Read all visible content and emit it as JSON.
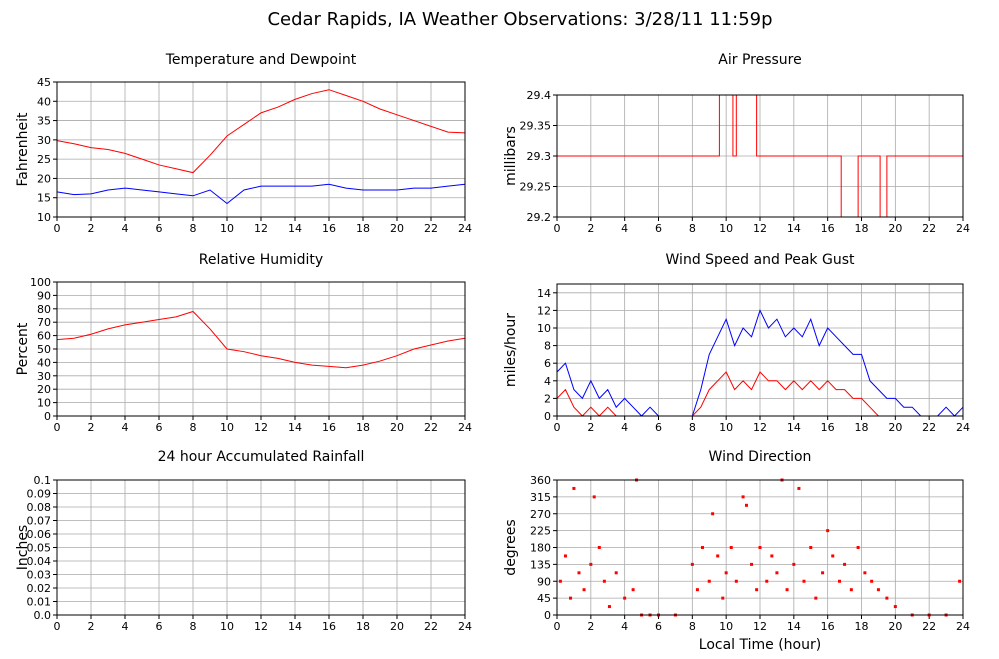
{
  "title": "Cedar Rapids, IA Weather Observations: 3/28/11 11:59p",
  "chart_data": [
    {
      "type": "line",
      "title": "Temperature and Dewpoint",
      "ylabel": "Fahrenheit",
      "x": [
        0,
        1,
        2,
        3,
        4,
        5,
        6,
        7,
        8,
        9,
        10,
        11,
        12,
        13,
        14,
        15,
        16,
        17,
        18,
        19,
        20,
        21,
        22,
        23,
        24
      ],
      "series": [
        {
          "color": "#ff0000",
          "values": [
            29.8,
            29,
            28,
            27.5,
            26.5,
            25,
            23.5,
            22.5,
            21.5,
            26,
            31,
            34,
            37,
            38.5,
            40.5,
            42,
            43,
            41.5,
            40,
            38,
            36.5,
            35,
            33.5,
            32,
            31.8
          ]
        },
        {
          "color": "#0000ff",
          "values": [
            16.5,
            15.8,
            16,
            17,
            17.5,
            17,
            16.5,
            16,
            15.5,
            17,
            13.5,
            17,
            18,
            18,
            18,
            18,
            18.5,
            17.5,
            17,
            17,
            17,
            17.5,
            17.5,
            18,
            18.5
          ]
        }
      ],
      "xlim": [
        0,
        24
      ],
      "xticks": [
        0,
        2,
        4,
        6,
        8,
        10,
        12,
        14,
        16,
        18,
        20,
        22,
        24
      ],
      "ylim": [
        10,
        45
      ],
      "yticks": [
        10,
        15,
        20,
        25,
        30,
        35,
        40,
        45
      ],
      "grid": true
    },
    {
      "type": "line",
      "title": "Air Pressure",
      "ylabel": "millibars",
      "x": [
        0,
        9.6,
        9.6,
        10.4,
        10.4,
        10.6,
        10.6,
        11.8,
        11.8,
        16.8,
        16.8,
        17.8,
        17.8,
        19.1,
        19.1,
        19.5,
        19.5,
        24
      ],
      "series": [
        {
          "color": "#ff0000",
          "values": [
            29.3,
            29.3,
            29.4,
            29.4,
            29.3,
            29.3,
            29.4,
            29.4,
            29.3,
            29.3,
            29.2,
            29.2,
            29.3,
            29.3,
            29.2,
            29.2,
            29.3,
            29.3
          ]
        }
      ],
      "xlim": [
        0,
        24
      ],
      "xticks": [
        0,
        2,
        4,
        6,
        8,
        10,
        12,
        14,
        16,
        18,
        20,
        22,
        24
      ],
      "ylim": [
        29.2,
        29.4
      ],
      "yticks": [
        29.2,
        29.25,
        29.3,
        29.35,
        29.4
      ],
      "grid": true
    },
    {
      "type": "line",
      "title": "Relative Humidity",
      "ylabel": "Percent",
      "x": [
        0,
        1,
        2,
        3,
        4,
        5,
        6,
        7,
        8,
        9,
        10,
        11,
        12,
        13,
        14,
        15,
        16,
        17,
        18,
        19,
        20,
        21,
        22,
        23,
        24
      ],
      "series": [
        {
          "color": "#ff0000",
          "values": [
            57,
            58,
            61,
            65,
            68,
            70,
            72,
            74,
            78,
            65,
            50,
            48,
            45,
            43,
            40,
            38,
            37,
            36,
            38,
            41,
            45,
            50,
            53,
            56,
            58
          ]
        }
      ],
      "xlim": [
        0,
        24
      ],
      "xticks": [
        0,
        2,
        4,
        6,
        8,
        10,
        12,
        14,
        16,
        18,
        20,
        22,
        24
      ],
      "ylim": [
        0,
        100
      ],
      "yticks": [
        0,
        10,
        20,
        30,
        40,
        50,
        60,
        70,
        80,
        90,
        100
      ],
      "grid": true
    },
    {
      "type": "line",
      "title": "Wind Speed and Peak Gust",
      "ylabel": "miles/hour",
      "x": [
        0,
        0.5,
        1,
        1.5,
        2,
        2.5,
        3,
        3.5,
        4,
        4.5,
        5,
        5.5,
        6,
        6.5,
        7,
        7.5,
        8,
        8.5,
        9,
        9.5,
        10,
        10.5,
        11,
        11.5,
        12,
        12.5,
        13,
        13.5,
        14,
        14.5,
        15,
        15.5,
        16,
        16.5,
        17,
        17.5,
        18,
        18.5,
        19,
        19.5,
        20,
        20.5,
        21,
        21.5,
        22,
        22.5,
        23,
        23.5,
        24
      ],
      "series": [
        {
          "color": "#0000ff",
          "values": [
            5,
            6,
            3,
            2,
            4,
            2,
            3,
            1,
            2,
            1,
            0,
            1,
            0,
            0,
            0,
            0,
            0,
            3,
            7,
            9,
            11,
            8,
            10,
            9,
            12,
            10,
            11,
            9,
            10,
            9,
            11,
            8,
            10,
            9,
            8,
            7,
            7,
            4,
            3,
            2,
            2,
            1,
            1,
            0,
            0,
            0,
            1,
            0,
            1
          ]
        },
        {
          "color": "#ff0000",
          "values": [
            2,
            3,
            1,
            0,
            1,
            0,
            1,
            0,
            0,
            0,
            0,
            0,
            0,
            0,
            0,
            0,
            0,
            1,
            3,
            4,
            5,
            3,
            4,
            3,
            5,
            4,
            4,
            3,
            4,
            3,
            4,
            3,
            4,
            3,
            3,
            2,
            2,
            1,
            0,
            0,
            0,
            0,
            0,
            0,
            0,
            0,
            0,
            0,
            0
          ]
        }
      ],
      "xlim": [
        0,
        24
      ],
      "xticks": [
        0,
        2,
        4,
        6,
        8,
        10,
        12,
        14,
        16,
        18,
        20,
        22,
        24
      ],
      "ylim": [
        0,
        15
      ],
      "yticks": [
        0,
        2,
        4,
        6,
        8,
        10,
        12,
        14
      ],
      "grid": true
    },
    {
      "type": "line",
      "title": "24 hour Accumulated Rainfall",
      "ylabel": "Inches",
      "x": [
        0,
        24
      ],
      "series": [
        {
          "color": "#ff3366",
          "values": [
            0,
            0
          ]
        }
      ],
      "xlim": [
        0,
        24
      ],
      "xticks": [
        0,
        2,
        4,
        6,
        8,
        10,
        12,
        14,
        16,
        18,
        20,
        22,
        24
      ],
      "ylim": [
        0,
        0.1
      ],
      "yticks": [
        {
          "value": 0,
          "label": "0.0"
        },
        0.01,
        0.02,
        0.03,
        0.04,
        0.05,
        0.06,
        0.07,
        0.08,
        0.09,
        0.1
      ],
      "grid": true
    },
    {
      "type": "scatter",
      "title": "Wind Direction",
      "ylabel": "degrees",
      "xlabel": "Local Time (hour)",
      "color": "#ff0000",
      "x": [
        0.2,
        0.5,
        0.8,
        1.0,
        1.3,
        1.6,
        2.0,
        2.2,
        2.5,
        2.8,
        3.1,
        3.5,
        4.0,
        4.5,
        4.7,
        5.0,
        5.5,
        6.0,
        7.0,
        8.0,
        8.3,
        8.6,
        9.0,
        9.2,
        9.5,
        9.8,
        10.0,
        10.3,
        10.6,
        11.0,
        11.2,
        11.5,
        11.8,
        12.0,
        12.4,
        12.7,
        13.0,
        13.3,
        13.6,
        14.0,
        14.3,
        14.6,
        15.0,
        15.3,
        15.7,
        16.0,
        16.3,
        16.7,
        17.0,
        17.4,
        17.8,
        18.2,
        18.6,
        19.0,
        19.5,
        20.0,
        21.0,
        22.0,
        23.0,
        23.8
      ],
      "values": [
        90,
        157.5,
        45,
        337.5,
        112.5,
        67.5,
        135,
        315,
        180,
        90,
        22.5,
        112.5,
        45,
        67.5,
        360,
        0,
        0,
        0,
        0,
        135,
        67.5,
        180,
        90,
        270,
        157.5,
        45,
        112.5,
        180,
        90,
        315,
        292.5,
        135,
        67.5,
        180,
        90,
        157.5,
        112.5,
        360,
        67.5,
        135,
        337.5,
        90,
        180,
        45,
        112.5,
        225,
        157.5,
        90,
        135,
        67.5,
        180,
        112.5,
        90,
        67.5,
        45,
        22.5,
        0,
        0,
        0,
        90
      ],
      "xlim": [
        0,
        24
      ],
      "xticks": [
        0,
        2,
        4,
        6,
        8,
        10,
        12,
        14,
        16,
        18,
        20,
        22,
        24
      ],
      "ylim": [
        0,
        360
      ],
      "yticks": [
        0,
        45,
        90,
        135,
        180,
        225,
        270,
        315,
        360
      ],
      "grid": true
    }
  ]
}
